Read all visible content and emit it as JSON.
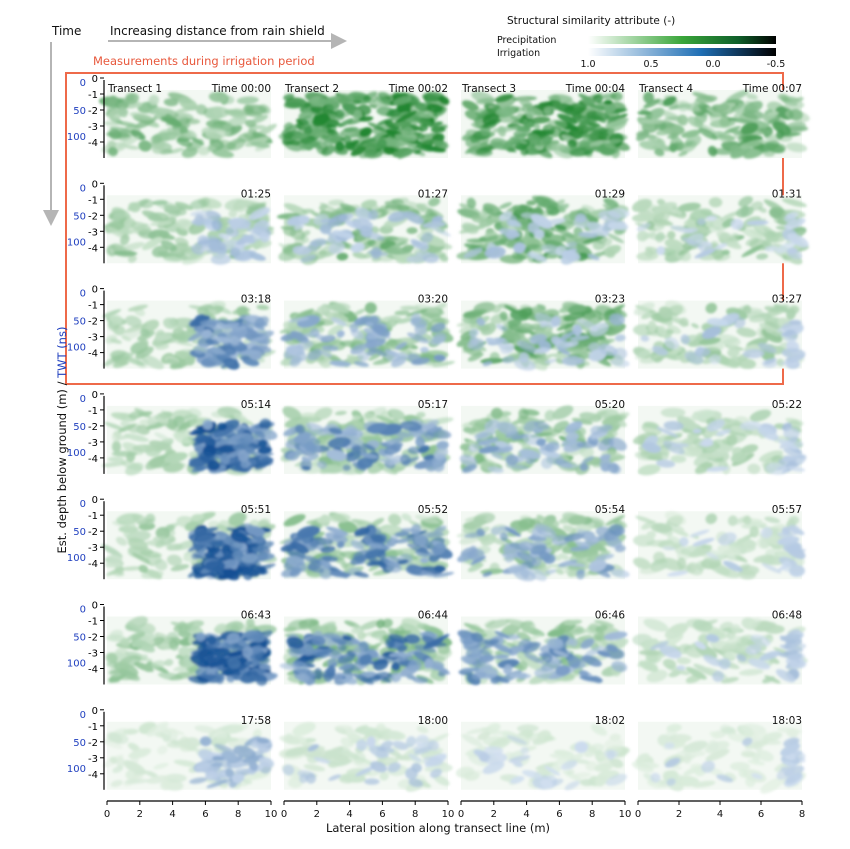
{
  "header": {
    "time_label": "Time",
    "distance_label": "Increasing distance from rain shield",
    "irrigation_period_label": "Measurements during irrigation period"
  },
  "colorbar": {
    "title": "Structural similarity attribute (-)",
    "precipitation_label": "Precipitation",
    "irrigation_label": "Irrigation",
    "ticks": [
      "1.0",
      "0.5",
      "0.0",
      "-0.5"
    ],
    "precipitation_color": "#1c7a1c",
    "irrigation_color": "#0d4f8f"
  },
  "transects": [
    "Transect 1",
    "Transect 2",
    "Transect 3",
    "Transect 4"
  ],
  "time_prefix": "Time",
  "times": [
    [
      "00:00",
      "00:02",
      "00:04",
      "00:07"
    ],
    [
      "01:25",
      "01:27",
      "01:29",
      "01:31"
    ],
    [
      "03:18",
      "03:20",
      "03:23",
      "03:27"
    ],
    [
      "05:14",
      "05:17",
      "05:20",
      "05:22"
    ],
    [
      "05:51",
      "05:52",
      "05:54",
      "05:57"
    ],
    [
      "06:43",
      "06:44",
      "06:46",
      "06:48"
    ],
    [
      "17:58",
      "18:00",
      "18:02",
      "18:03"
    ]
  ],
  "axes": {
    "ylabel_depth": "Est. depth below ground (m)",
    "ylabel_sep": " / ",
    "ylabel_twt": "TWT (ns)",
    "xlabel": "Lateral position along transect line (m)",
    "depth_ticks": [
      "0",
      "-1",
      "-2",
      "-3",
      "-4"
    ],
    "twt_ticks": [
      "0",
      "50",
      "100"
    ],
    "x_ticks_full": [
      "0",
      "2",
      "4",
      "6",
      "8",
      "10"
    ],
    "x_ticks_short": [
      "0",
      "2",
      "4",
      "6",
      "8"
    ],
    "depth_color": "#000000",
    "twt_color": "#1f3fbf"
  },
  "chart_data": {
    "type": "heatmap",
    "title": "",
    "rows": 7,
    "cols": 4,
    "xlabel": "Lateral position along transect line (m)",
    "ylabel": "Est. depth below ground (m) / TWT (ns)",
    "x_ranges_m": [
      [
        0,
        10
      ],
      [
        0,
        10
      ],
      [
        0,
        10
      ],
      [
        0,
        8
      ]
    ],
    "depth_range_m": [
      0,
      -4
    ],
    "twt_ticks_ns": [
      0,
      50,
      100
    ],
    "color_scale": {
      "min": -0.5,
      "max": 1.0,
      "precipitation_colormap": "white-to-green-to-black",
      "irrigation_colormap": "white-to-blue"
    },
    "highlighted_rows": [
      0,
      1,
      2
    ],
    "precip_intensity": [
      [
        0.45,
        0.95,
        0.75,
        0.55
      ],
      [
        0.35,
        0.45,
        0.6,
        0.35
      ],
      [
        0.3,
        0.4,
        0.55,
        0.3
      ],
      [
        0.3,
        0.35,
        0.4,
        0.25
      ],
      [
        0.28,
        0.35,
        0.35,
        0.2
      ],
      [
        0.35,
        0.45,
        0.35,
        0.2
      ],
      [
        0.1,
        0.12,
        0.1,
        0.08
      ]
    ],
    "irrigation_intensity": [
      [
        0.0,
        0.0,
        0.0,
        0.0
      ],
      [
        0.25,
        0.25,
        0.2,
        0.15
      ],
      [
        0.55,
        0.35,
        0.25,
        0.2
      ],
      [
        0.75,
        0.55,
        0.35,
        0.2
      ],
      [
        0.85,
        0.6,
        0.4,
        0.15
      ],
      [
        0.85,
        0.65,
        0.5,
        0.2
      ],
      [
        0.3,
        0.2,
        0.15,
        0.15
      ]
    ]
  }
}
